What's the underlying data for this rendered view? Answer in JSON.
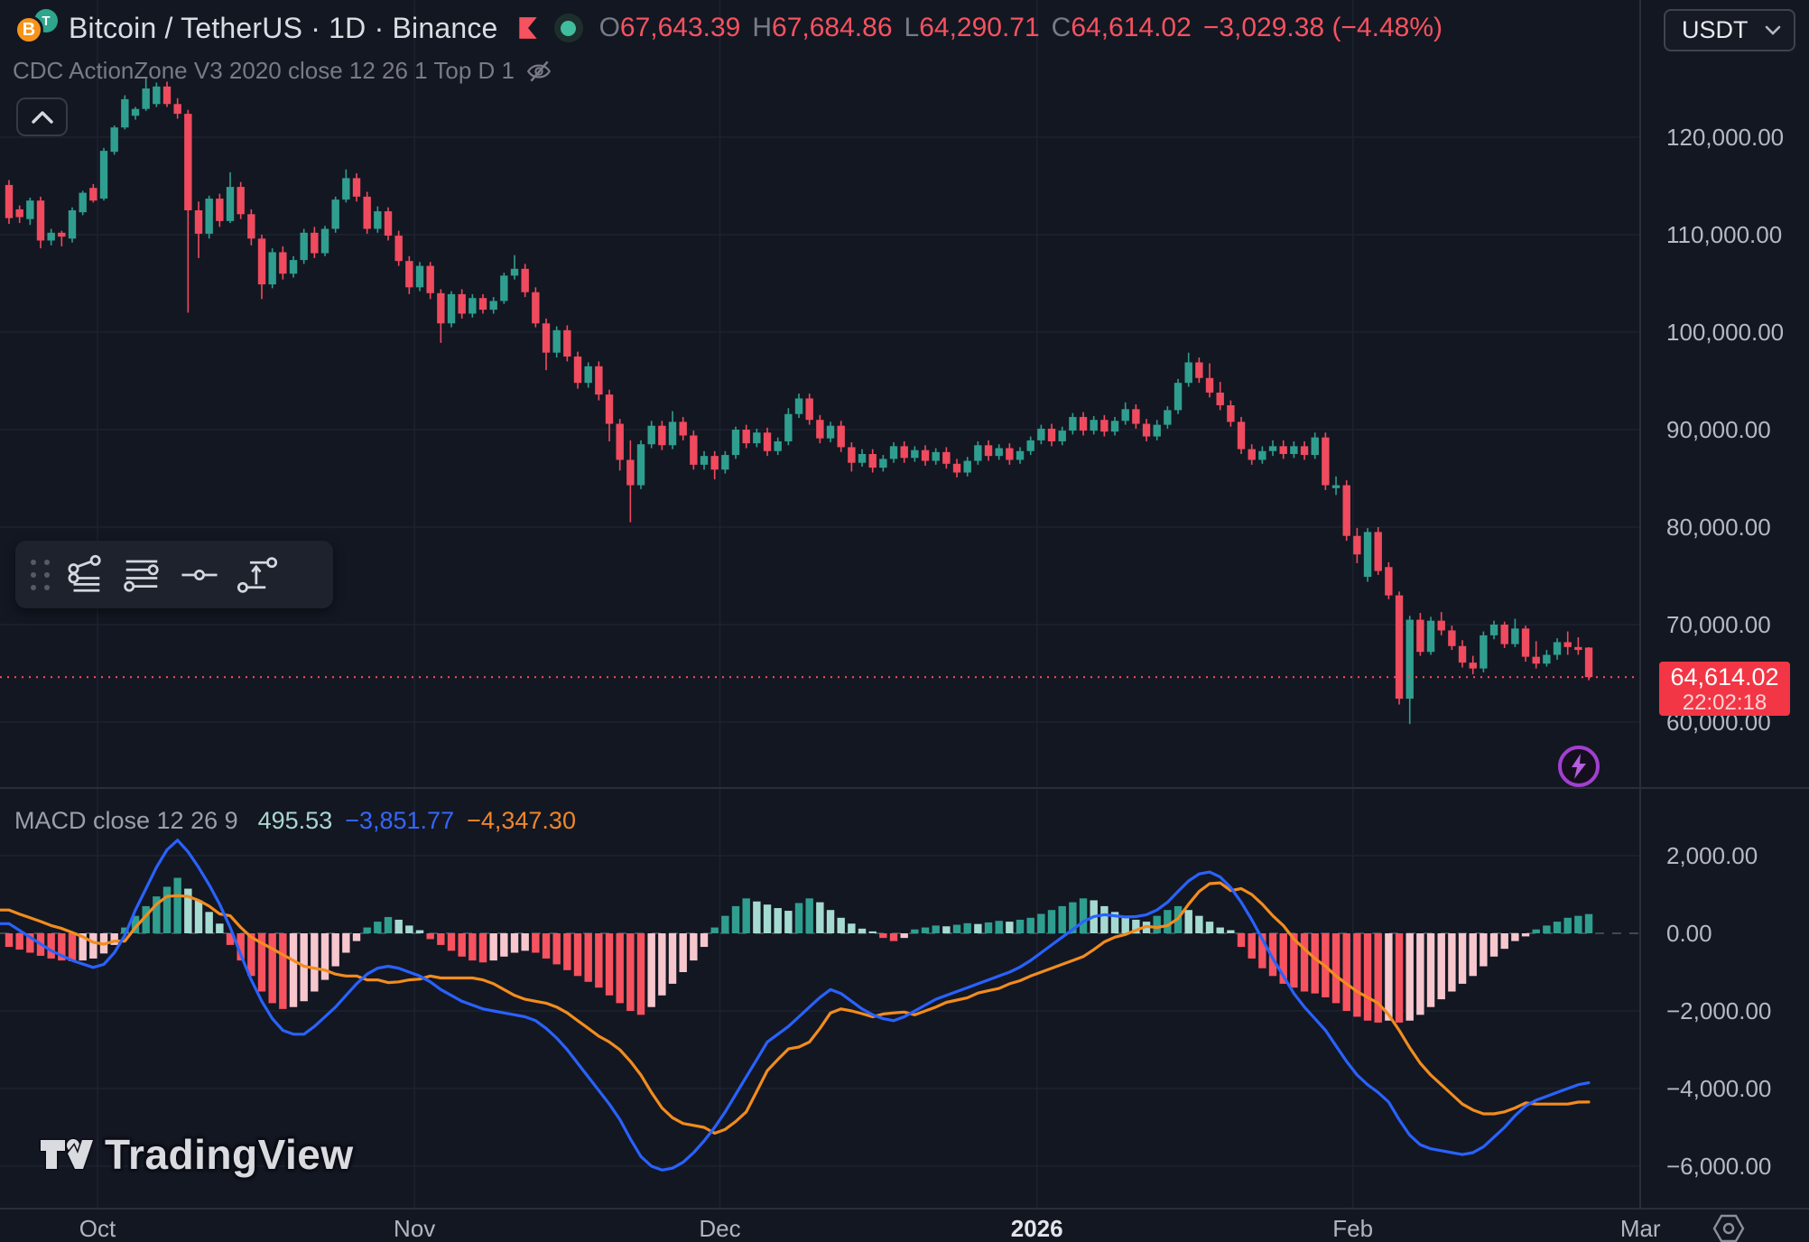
{
  "header": {
    "symbol_title": "Bitcoin / TetherUS · 1D · Binance",
    "btc_glyph": "B",
    "usdt_glyph": "T",
    "ohlc": {
      "o_label": "O",
      "o": "67,643.39",
      "h_label": "H",
      "h": "67,684.86",
      "l_label": "L",
      "l": "64,290.71",
      "c_label": "C",
      "c": "64,614.02",
      "change": "−3,029.38 (−4.48%)"
    },
    "indicator_label": "CDC ActionZone V3 2020 close 12 26 1 Top D 1",
    "currency_button": "USDT"
  },
  "macd_legend": {
    "title": "MACD close 12 26 9",
    "hist_value": "495.53",
    "macd_value": "−3,851.77",
    "signal_value": "−4,347.30"
  },
  "price_tag": {
    "price": "64,614.02",
    "countdown": "22:02:18"
  },
  "watermark_text": "TradingView",
  "toolbar_icons": [
    "trend-fib-tool",
    "fib-retracement-tool",
    "horizontal-line-tool",
    "trend-projection-tool"
  ],
  "colors": {
    "background": "#131722",
    "grid": "#1d2230",
    "axis_line": "#2a2e39",
    "candle_up": "#2f9e8f",
    "candle_down": "#ef4a5e",
    "hist_pos": "#2f9e8f",
    "hist_pos_fade": "#a5dad1",
    "hist_neg": "#f7525f",
    "hist_neg_fade": "#f6c7cd",
    "macd_line": "#2962ff",
    "signal_line": "#f28c1e",
    "price_line": "#ef4a5e",
    "tag_bg": "#f23645",
    "accent_purple": "#a23fd0"
  },
  "chart_data": {
    "type": "candlestick+macd",
    "title": "Bitcoin / TetherUS daily with MACD(12,26,9)",
    "price_axis": {
      "ticks": [
        {
          "v": 120000,
          "label": "120,000.00"
        },
        {
          "v": 110000,
          "label": "110,000.00"
        },
        {
          "v": 100000,
          "label": "100,000.00"
        },
        {
          "v": 90000,
          "label": "90,000.00"
        },
        {
          "v": 80000,
          "label": "80,000.00"
        },
        {
          "v": 70000,
          "label": "70,000.00"
        },
        {
          "v": 60000,
          "label": "60,000.00"
        }
      ]
    },
    "macd_axis": {
      "ticks": [
        {
          "v": 2000,
          "label": "2,000.00"
        },
        {
          "v": 0,
          "label": "0.00"
        },
        {
          "v": -2000,
          "label": "−2,000.00"
        },
        {
          "v": -4000,
          "label": "−4,000.00"
        },
        {
          "v": -6000,
          "label": "−6,000.00"
        }
      ]
    },
    "x_axis": {
      "ticks": [
        {
          "label": "Oct",
          "idx": 8.4,
          "year": false
        },
        {
          "label": "Nov",
          "idx": 38.5,
          "year": false
        },
        {
          "label": "Dec",
          "idx": 67.5,
          "year": false
        },
        {
          "label": "2026",
          "idx": 97.6,
          "year": true
        },
        {
          "label": "Feb",
          "idx": 127.6,
          "year": false
        },
        {
          "label": "Mar",
          "idx": 154.9,
          "year": false
        }
      ]
    },
    "price_line_value": 64614.02,
    "candles": [
      [
        115100,
        115600,
        111100,
        111700
      ],
      [
        112600,
        113000,
        111200,
        111800
      ],
      [
        111600,
        113800,
        111000,
        113500
      ],
      [
        113500,
        113900,
        108600,
        109400
      ],
      [
        109400,
        110600,
        108900,
        110200
      ],
      [
        110200,
        110400,
        108800,
        109800
      ],
      [
        109600,
        112800,
        109200,
        112500
      ],
      [
        112300,
        114500,
        112000,
        114300
      ],
      [
        114800,
        115200,
        113300,
        113500
      ],
      [
        113700,
        118900,
        113500,
        118600
      ],
      [
        118500,
        121200,
        118200,
        121000
      ],
      [
        121000,
        124300,
        120800,
        123900
      ],
      [
        122200,
        123100,
        121800,
        122900
      ],
      [
        122900,
        126200,
        122700,
        125000
      ],
      [
        123400,
        125600,
        123100,
        125200
      ],
      [
        125200,
        125700,
        123100,
        123400
      ],
      [
        123400,
        124000,
        121900,
        122400
      ],
      [
        122400,
        122800,
        102000,
        112500
      ],
      [
        112500,
        113400,
        107600,
        110100
      ],
      [
        110100,
        114000,
        109600,
        113700
      ],
      [
        113700,
        114200,
        110800,
        111400
      ],
      [
        111400,
        116400,
        111200,
        114900
      ],
      [
        114900,
        115400,
        111600,
        112100
      ],
      [
        112100,
        112600,
        108900,
        109600
      ],
      [
        109600,
        110000,
        103400,
        104900
      ],
      [
        104900,
        108600,
        104500,
        108200
      ],
      [
        108200,
        108800,
        105400,
        106000
      ],
      [
        106000,
        107800,
        105600,
        107400
      ],
      [
        107400,
        110600,
        107000,
        110200
      ],
      [
        110200,
        110800,
        107600,
        108100
      ],
      [
        108100,
        110900,
        107800,
        110600
      ],
      [
        110600,
        113900,
        110200,
        113600
      ],
      [
        113600,
        116700,
        113300,
        115800
      ],
      [
        115800,
        116300,
        113400,
        113900
      ],
      [
        113900,
        114400,
        110100,
        110600
      ],
      [
        110600,
        112900,
        110200,
        112400
      ],
      [
        112400,
        112800,
        109400,
        109900
      ],
      [
        109900,
        110400,
        106800,
        107300
      ],
      [
        107300,
        107800,
        103900,
        104600
      ],
      [
        104600,
        107200,
        104200,
        106800
      ],
      [
        106800,
        107200,
        103400,
        104000
      ],
      [
        104000,
        104400,
        98900,
        100900
      ],
      [
        100900,
        104200,
        100500,
        103900
      ],
      [
        103900,
        104400,
        101400,
        101900
      ],
      [
        101900,
        103900,
        101500,
        103500
      ],
      [
        103500,
        103900,
        101900,
        102300
      ],
      [
        102300,
        103600,
        101900,
        103200
      ],
      [
        103200,
        106100,
        102900,
        105800
      ],
      [
        105800,
        107900,
        105400,
        106500
      ],
      [
        106500,
        107000,
        103600,
        104100
      ],
      [
        104100,
        104600,
        100500,
        100900
      ],
      [
        100900,
        101400,
        96100,
        97900
      ],
      [
        97900,
        100600,
        97400,
        100200
      ],
      [
        100200,
        100700,
        97000,
        97500
      ],
      [
        97500,
        98000,
        94200,
        94800
      ],
      [
        94800,
        96900,
        94300,
        96500
      ],
      [
        96500,
        97000,
        93000,
        93600
      ],
      [
        93600,
        94100,
        88800,
        90600
      ],
      [
        90600,
        91100,
        85800,
        86900
      ],
      [
        86900,
        88900,
        80500,
        84300
      ],
      [
        84300,
        88900,
        83900,
        88500
      ],
      [
        88500,
        90900,
        88100,
        90400
      ],
      [
        90400,
        90900,
        87900,
        88400
      ],
      [
        88400,
        91900,
        88000,
        90800
      ],
      [
        90800,
        91300,
        88900,
        89400
      ],
      [
        89400,
        89900,
        85900,
        86400
      ],
      [
        86400,
        87800,
        85900,
        87300
      ],
      [
        87300,
        87800,
        84900,
        85900
      ],
      [
        85900,
        87800,
        85500,
        87400
      ],
      [
        87400,
        90300,
        87000,
        90000
      ],
      [
        90000,
        90500,
        88100,
        88600
      ],
      [
        88600,
        90100,
        88200,
        89700
      ],
      [
        89700,
        90200,
        87300,
        87800
      ],
      [
        87800,
        89200,
        87400,
        88800
      ],
      [
        88800,
        92200,
        88400,
        91600
      ],
      [
        91600,
        93700,
        91200,
        93200
      ],
      [
        93200,
        93700,
        90500,
        91000
      ],
      [
        91000,
        91500,
        88600,
        89100
      ],
      [
        89100,
        90800,
        88700,
        90400
      ],
      [
        90400,
        90900,
        87700,
        88200
      ],
      [
        88200,
        88700,
        85700,
        86600
      ],
      [
        86600,
        88000,
        86200,
        87500
      ],
      [
        87500,
        88000,
        85600,
        86100
      ],
      [
        86100,
        87400,
        85700,
        87000
      ],
      [
        87000,
        88700,
        86600,
        88300
      ],
      [
        88300,
        88800,
        86600,
        87100
      ],
      [
        87100,
        88300,
        86700,
        87900
      ],
      [
        87900,
        88400,
        86300,
        86800
      ],
      [
        86800,
        88100,
        86400,
        87700
      ],
      [
        87700,
        88200,
        86000,
        86500
      ],
      [
        86500,
        87000,
        85100,
        85600
      ],
      [
        85600,
        87200,
        85200,
        86800
      ],
      [
        86800,
        88800,
        86400,
        88400
      ],
      [
        88400,
        88900,
        86800,
        87300
      ],
      [
        87300,
        88500,
        86900,
        88100
      ],
      [
        88100,
        88600,
        86400,
        86900
      ],
      [
        86900,
        88200,
        86500,
        87800
      ],
      [
        87800,
        89300,
        87400,
        88900
      ],
      [
        88900,
        90500,
        88500,
        90100
      ],
      [
        90100,
        90600,
        88300,
        88800
      ],
      [
        88800,
        90300,
        88400,
        89900
      ],
      [
        89900,
        91700,
        89500,
        91300
      ],
      [
        91300,
        91800,
        89400,
        89900
      ],
      [
        89900,
        91400,
        89500,
        91000
      ],
      [
        91000,
        91500,
        89300,
        89800
      ],
      [
        89800,
        91300,
        89400,
        90900
      ],
      [
        90900,
        92800,
        90500,
        92100
      ],
      [
        92100,
        92600,
        90100,
        90600
      ],
      [
        90600,
        91100,
        88800,
        89300
      ],
      [
        89300,
        91000,
        88900,
        90500
      ],
      [
        90500,
        92400,
        90100,
        92000
      ],
      [
        92000,
        95200,
        91600,
        94800
      ],
      [
        94800,
        97900,
        94400,
        96900
      ],
      [
        96900,
        97400,
        94800,
        95300
      ],
      [
        95300,
        96800,
        93300,
        93800
      ],
      [
        93800,
        94900,
        92000,
        92500
      ],
      [
        92500,
        93000,
        90300,
        90800
      ],
      [
        90800,
        91300,
        87500,
        88000
      ],
      [
        88000,
        88500,
        86400,
        86900
      ],
      [
        86900,
        88300,
        86500,
        87800
      ],
      [
        87800,
        88900,
        87300,
        88300
      ],
      [
        88300,
        88900,
        87000,
        87500
      ],
      [
        87500,
        88800,
        87100,
        88300
      ],
      [
        88300,
        88800,
        86900,
        87400
      ],
      [
        87400,
        89700,
        87000,
        89200
      ],
      [
        89200,
        89700,
        83800,
        84300
      ],
      [
        84000,
        85200,
        83300,
        84300
      ],
      [
        84300,
        84800,
        78600,
        79100
      ],
      [
        79100,
        79900,
        76300,
        77200
      ],
      [
        74900,
        79900,
        74400,
        79500
      ],
      [
        79500,
        80000,
        75100,
        75500
      ],
      [
        75900,
        76400,
        72600,
        73000
      ],
      [
        73000,
        73400,
        61800,
        62400
      ],
      [
        62400,
        70900,
        59800,
        70500
      ],
      [
        70500,
        71200,
        66800,
        67200
      ],
      [
        67200,
        70800,
        66900,
        70400
      ],
      [
        70400,
        71300,
        68900,
        69400
      ],
      [
        69400,
        69900,
        67400,
        67800
      ],
      [
        67800,
        68400,
        65600,
        66100
      ],
      [
        66100,
        66800,
        64900,
        65500
      ],
      [
        65500,
        69300,
        65100,
        68900
      ],
      [
        68900,
        70400,
        68500,
        70000
      ],
      [
        70000,
        70300,
        67600,
        68000
      ],
      [
        68000,
        70600,
        67700,
        69600
      ],
      [
        69600,
        69900,
        66200,
        66700
      ],
      [
        66700,
        68300,
        65500,
        66000
      ],
      [
        66000,
        67400,
        65700,
        66900
      ],
      [
        66900,
        68600,
        66400,
        68200
      ],
      [
        68200,
        69300,
        66900,
        67700
      ],
      [
        67700,
        68700,
        66900,
        67400
      ],
      [
        67643,
        67685,
        64291,
        64614
      ]
    ],
    "macd": [
      250,
      75,
      -100,
      -275,
      -450,
      -575,
      -700,
      -790,
      -880,
      -800,
      -500,
      -50,
      600,
      1150,
      1700,
      2150,
      2400,
      2100,
      1700,
      1250,
      750,
      150,
      -550,
      -1200,
      -1750,
      -2200,
      -2500,
      -2600,
      -2600,
      -2400,
      -2150,
      -1900,
      -1600,
      -1300,
      -1050,
      -900,
      -850,
      -900,
      -1000,
      -1100,
      -1250,
      -1450,
      -1600,
      -1750,
      -1850,
      -1950,
      -2000,
      -2050,
      -2100,
      -2150,
      -2250,
      -2450,
      -2700,
      -3000,
      -3350,
      -3700,
      -4050,
      -4400,
      -4800,
      -5300,
      -5750,
      -6000,
      -6100,
      -6050,
      -5900,
      -5650,
      -5350,
      -5000,
      -4600,
      -4150,
      -3700,
      -3250,
      -2800,
      -2600,
      -2400,
      -2150,
      -1900,
      -1650,
      -1450,
      -1550,
      -1750,
      -1950,
      -2100,
      -2200,
      -2250,
      -2150,
      -2000,
      -1850,
      -1700,
      -1600,
      -1500,
      -1400,
      -1300,
      -1200,
      -1100,
      -1000,
      -870,
      -700,
      -500,
      -300,
      -100,
      100,
      300,
      430,
      480,
      450,
      420,
      430,
      480,
      600,
      800,
      1080,
      1350,
      1530,
      1580,
      1450,
      1180,
      800,
      350,
      -150,
      -650,
      -1100,
      -1550,
      -1900,
      -2200,
      -2500,
      -2900,
      -3300,
      -3650,
      -3900,
      -4100,
      -4350,
      -4800,
      -5200,
      -5450,
      -5550,
      -5600,
      -5650,
      -5700,
      -5650,
      -5500,
      -5250,
      -5000,
      -4700,
      -4450,
      -4300,
      -4200,
      -4100,
      -4000,
      -3900,
      -3851.77
    ],
    "hist": [
      -350,
      -420,
      -500,
      -580,
      -650,
      -700,
      -720,
      -700,
      -650,
      -520,
      -300,
      150,
      450,
      700,
      950,
      1200,
      1430,
      1150,
      850,
      550,
      250,
      -300,
      -700,
      -1100,
      -1500,
      -1800,
      -1950,
      -1900,
      -1750,
      -1500,
      -1200,
      -850,
      -500,
      -200,
      150,
      300,
      420,
      350,
      200,
      80,
      -150,
      -300,
      -450,
      -600,
      -700,
      -750,
      -700,
      -600,
      -500,
      -450,
      -500,
      -650,
      -800,
      -950,
      -1100,
      -1250,
      -1400,
      -1600,
      -1800,
      -2000,
      -2100,
      -1900,
      -1600,
      -1300,
      -1000,
      -700,
      -350,
      150,
      450,
      700,
      900,
      820,
      740,
      650,
      580,
      780,
      900,
      800,
      600,
      400,
      250,
      120,
      50,
      -120,
      -200,
      -120,
      100,
      150,
      200,
      180,
      220,
      260,
      240,
      280,
      320,
      300,
      350,
      400,
      500,
      600,
      700,
      800,
      900,
      850,
      700,
      550,
      450,
      350,
      300,
      450,
      600,
      700,
      600,
      450,
      300,
      150,
      80,
      -350,
      -650,
      -900,
      -1100,
      -1300,
      -1400,
      -1500,
      -1550,
      -1650,
      -1800,
      -2000,
      -2150,
      -2250,
      -2300,
      -2250,
      -2300,
      -2250,
      -2100,
      -1900,
      -1700,
      -1500,
      -1300,
      -1100,
      -850,
      -600,
      -400,
      -200,
      -80,
      100,
      200,
      300,
      400,
      450,
      495.53
    ]
  }
}
